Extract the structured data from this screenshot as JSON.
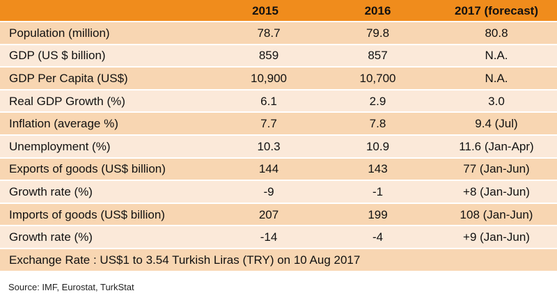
{
  "header": [
    "",
    "2015",
    "2016",
    "2017 (forecast)"
  ],
  "rows": [
    [
      "Population  (million)",
      "78.7",
      "79.8",
      "80.8"
    ],
    [
      "GDP (US $ billion)",
      "859",
      "857",
      "N.A."
    ],
    [
      "GDP Per Capita (US$)",
      "10,900",
      "10,700",
      "N.A."
    ],
    [
      "Real GDP Growth (%)",
      "6.1",
      "2.9",
      "3.0"
    ],
    [
      "Inflation (average %)",
      "7.7",
      "7.8",
      "9.4 (Jul)"
    ],
    [
      "Unemployment  (%)",
      "10.3",
      "10.9",
      "11.6 (Jan-Apr)"
    ],
    [
      "Exports of goods (US$ billion)",
      "144",
      "143",
      "77 (Jan-Jun)"
    ],
    [
      "Growth rate (%)",
      "-9",
      "-1",
      "+8 (Jan-Jun)"
    ],
    [
      "Imports of goods (US$ billion)",
      "207",
      "199",
      "108 (Jan-Jun)"
    ],
    [
      "Growth rate (%)",
      "-14",
      "-4",
      "+9 (Jan-Jun)"
    ]
  ],
  "exchange_rate": "Exchange Rate : US$1 to 3.54 Turkish Liras (TRY) on 10 Aug 2017",
  "source": "Source: IMF, Eurostat, TurkStat",
  "colors": {
    "header": "#f08c1c",
    "row_odd": "#f8d6b2",
    "row_even": "#fbe9d9"
  }
}
